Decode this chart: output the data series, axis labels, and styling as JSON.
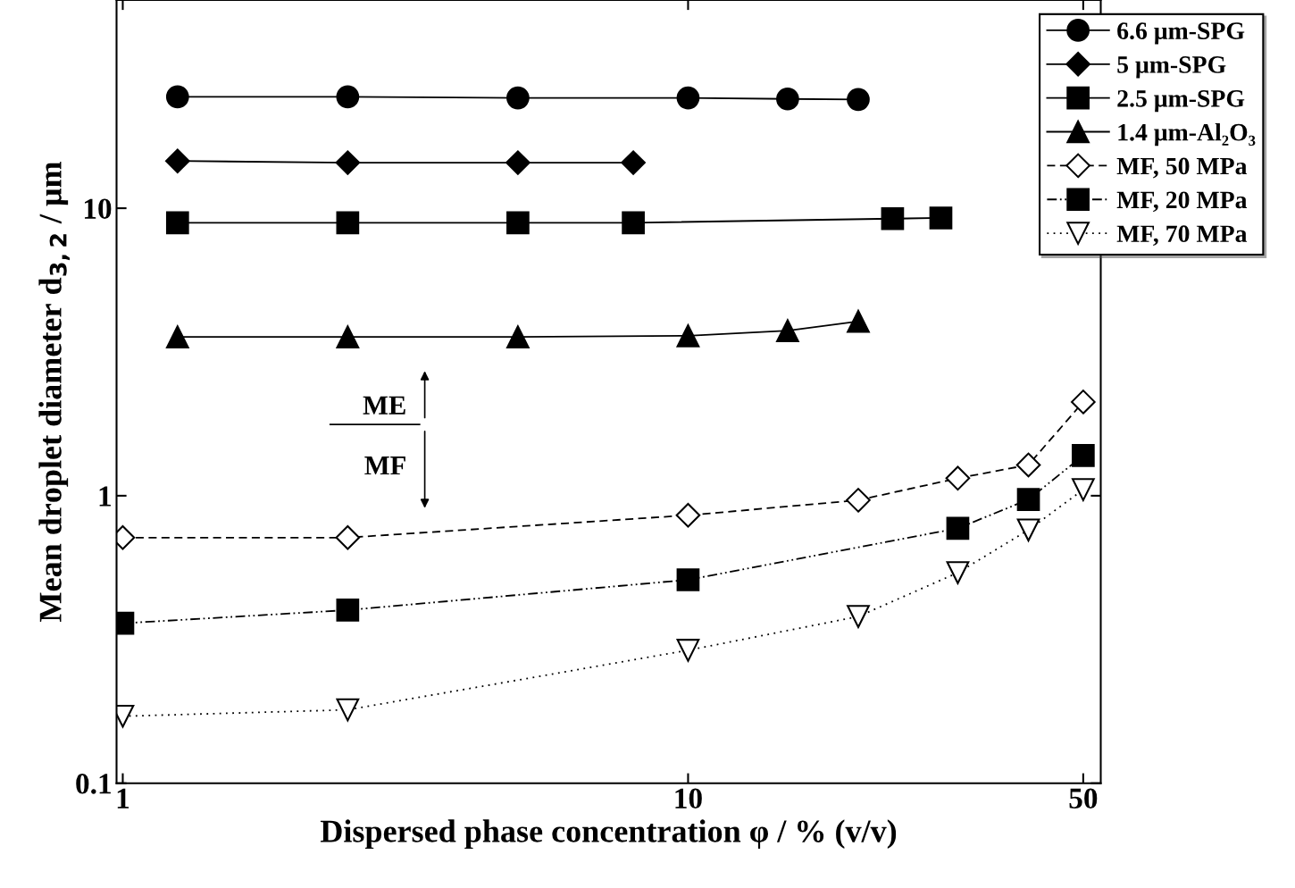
{
  "chart_data": {
    "type": "line",
    "xlabel": "Dispersed phase concentration φ / % (v/v)",
    "ylabel": "Mean droplet diameter d$_{3,2}$ / μm",
    "log": "xy",
    "xlim": [
      0.975,
      53.7
    ],
    "ylim": [
      0.1,
      53
    ],
    "xticks": [
      1,
      10,
      50
    ],
    "yticks": [
      0.1,
      1,
      10
    ],
    "grid": false,
    "legend": "top right",
    "annotations": [
      "ME",
      "MF"
    ],
    "series": [
      {
        "name": "6.6 μm-SPG",
        "color": "#000000",
        "marker": "circle",
        "line_style": "solid",
        "x": [
          1.25,
          2.5,
          5,
          10,
          15,
          20
        ],
        "values": [
          24.4,
          24.4,
          24.2,
          24.2,
          24.0,
          23.9
        ]
      },
      {
        "name": "5 μm-SPG",
        "color": "#000000",
        "marker": "diamond",
        "line_style": "solid",
        "x": [
          1.25,
          2.5,
          5,
          8
        ],
        "values": [
          14.6,
          14.4,
          14.4,
          14.4
        ]
      },
      {
        "name": "2.5 μm-SPG",
        "color": "#000000",
        "marker": "square",
        "line_style": "solid",
        "x": [
          1.25,
          2.5,
          5,
          8,
          23,
          28
        ],
        "values": [
          8.9,
          8.9,
          8.9,
          8.9,
          9.2,
          9.25
        ]
      },
      {
        "name": "1.4 μm-Al₂O₃",
        "color": "#000000",
        "marker": "triangle",
        "line_style": "solid",
        "x": [
          1.25,
          2.5,
          5,
          10,
          15,
          20
        ],
        "values": [
          3.57,
          3.57,
          3.57,
          3.6,
          3.75,
          4.04
        ]
      },
      {
        "name": "MF, 50 MPa",
        "color": "#000000",
        "marker": "diamond_open",
        "line_style": "dashed",
        "x": [
          1,
          2.5,
          10,
          20,
          30,
          40,
          50
        ],
        "values": [
          0.715,
          0.715,
          0.855,
          0.965,
          1.15,
          1.28,
          2.12
        ]
      },
      {
        "name": "MF, 20 MPa",
        "color": "#000000",
        "marker": "square",
        "line_style": "dashdotdot",
        "x": [
          1,
          2.5,
          10,
          30,
          40,
          50
        ],
        "values": [
          0.36,
          0.4,
          0.51,
          0.77,
          0.97,
          1.38
        ]
      },
      {
        "name": "MF, 70 MPa",
        "color": "#000000",
        "marker": "triangle_down_open",
        "line_style": "dotted",
        "x": [
          1,
          2.5,
          10,
          20,
          30,
          40,
          50
        ],
        "values": [
          0.171,
          0.18,
          0.29,
          0.38,
          0.54,
          0.76,
          1.05
        ]
      }
    ]
  }
}
